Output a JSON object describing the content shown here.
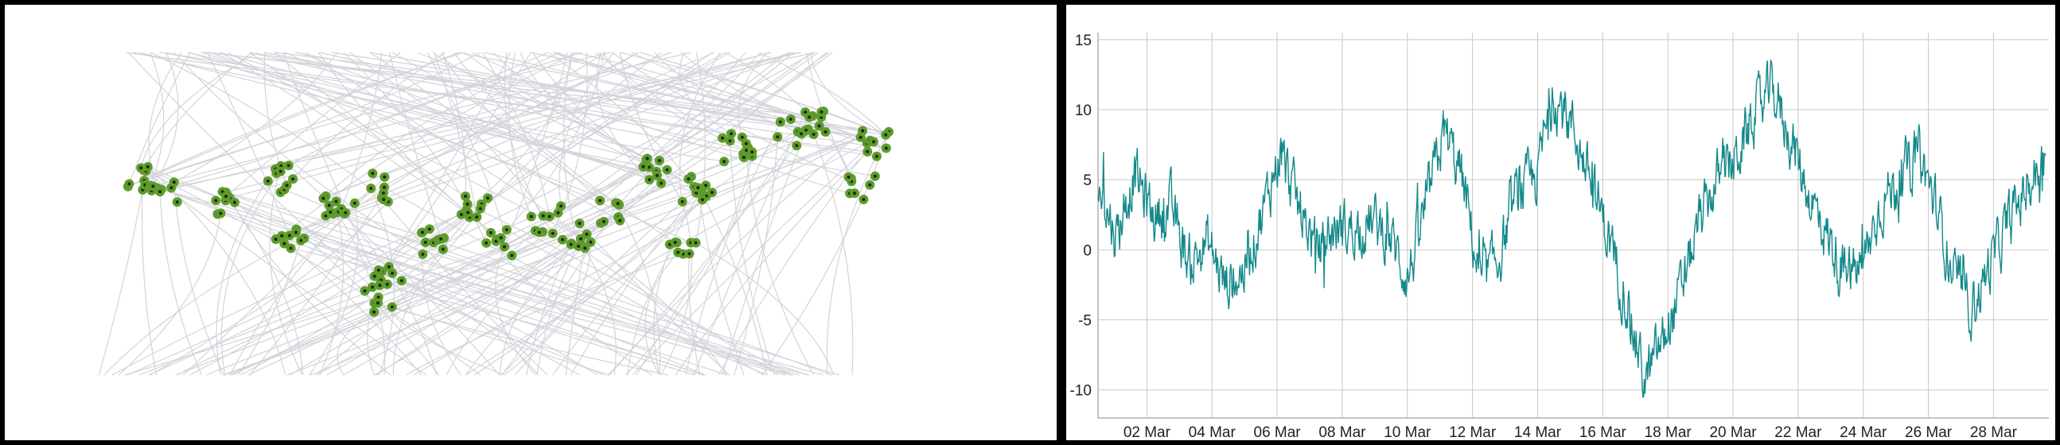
{
  "colors": {
    "frame": "#000000",
    "panel_bg": "#ffffff",
    "edge_lines": "#d3d4da",
    "node_fill": "#5e9b2c",
    "node_center": "#1a2a0a",
    "grid": "#c8c8c8",
    "series": "#14898a"
  },
  "chart_data": [
    {
      "type": "network",
      "title": "",
      "nodes_visible": true,
      "edges_visible": true,
      "labels": []
    },
    {
      "type": "line",
      "title": "",
      "xlabel": "",
      "ylabel": "",
      "grid": true,
      "legend": "none",
      "x_ticks": [
        "02 Mar",
        "04 Mar",
        "06 Mar",
        "08 Mar",
        "10 Mar",
        "12 Mar",
        "14 Mar",
        "16 Mar",
        "18 Mar",
        "20 Mar",
        "22 Mar",
        "24 Mar",
        "26 Mar",
        "28 Mar"
      ],
      "y_ticks": [
        "15",
        "10",
        "5",
        "0",
        "-5",
        "-10"
      ],
      "ylim": [
        -12,
        15.5
      ],
      "xlim_days": [
        1,
        29
      ],
      "series": [
        {
          "values_daily": [
            4.5,
            1.0,
            5.5,
            2.5,
            3.0,
            -1.0,
            0.5,
            -2.5,
            -1.5,
            2.5,
            7.0,
            3.0,
            0.0,
            1.5,
            1.5,
            2.0,
            1.0,
            -2.0,
            3.0,
            8.5,
            5.0,
            -2.5,
            -0.5,
            4.0,
            5.0,
            11.0,
            9.0,
            5.0,
            1.0,
            -3.5,
            -9.5,
            -6.5,
            -3.0,
            2.0,
            5.0,
            6.5,
            9.5,
            11.5,
            8.0,
            4.0,
            1.0,
            -2.0,
            -1.0,
            3.5,
            5.0,
            7.0,
            3.0,
            -2.0,
            -4.0,
            -1.0,
            2.0,
            4.5,
            6.5
          ]
        }
      ]
    }
  ]
}
